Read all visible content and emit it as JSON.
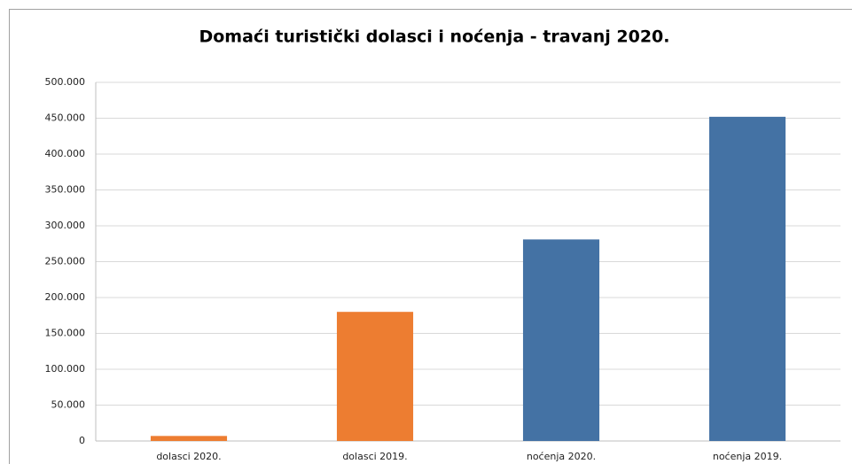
{
  "chart_data": {
    "type": "bar",
    "title": "Domaći turistički dolasci i noćenja - travanj 2020.",
    "categories": [
      "dolasci 2020.",
      "dolasci 2019.",
      "noćenja 2020.",
      "noćenja 2019."
    ],
    "values": [
      7000,
      180000,
      281000,
      452000
    ],
    "colors": [
      "#ed7d31",
      "#ed7d31",
      "#4472a4",
      "#4472a4"
    ],
    "ylim": [
      0,
      500000
    ],
    "yticks": [
      0,
      {
        "value": 50000,
        "label": "50.000"
      },
      {
        "value": 100000,
        "label": "100.000"
      },
      {
        "value": 150000,
        "label": "150.000"
      },
      {
        "value": 200000,
        "label": "200.000"
      },
      {
        "value": 250000,
        "label": "250.000"
      },
      {
        "value": 300000,
        "label": "300.000"
      },
      {
        "value": 350000,
        "label": "350.000"
      },
      {
        "value": 400000,
        "label": "400.000"
      },
      {
        "value": 450000,
        "label": "450.000"
      },
      {
        "value": 500000,
        "label": "500.000"
      }
    ],
    "grid": true
  }
}
